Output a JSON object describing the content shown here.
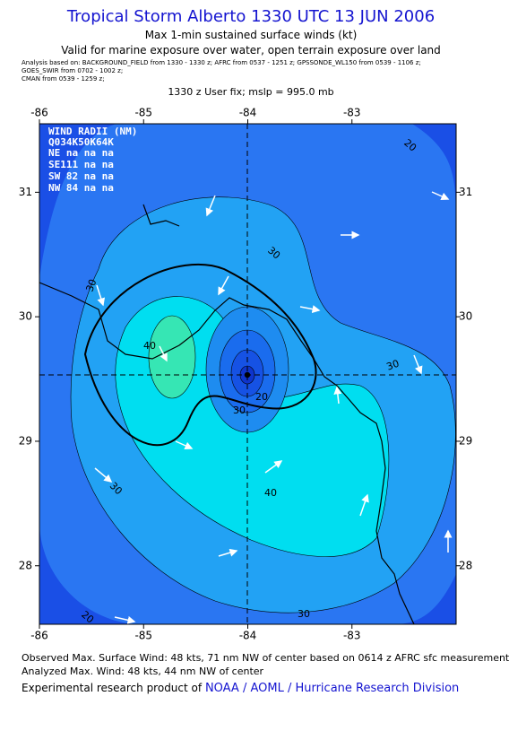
{
  "header": {
    "title": "Tropical Storm Alberto 1330 UTC 13 JUN 2006",
    "subtitle": "Max 1-min sustained surface winds (kt)",
    "validity": "Valid for marine exposure over water, open terrain exposure over land",
    "analysis": [
      "Analysis based on:  BACKGROUND_FIELD from 1330 - 1330 z;  AFRC from 0537 - 1251 z;  GPSSONDE_WL150 from 0539 - 1106 z;",
      "GOES_SWIR from 0702 - 1002 z;",
      "CMAN from 0539 - 1259 z;"
    ],
    "fix": "1330 z User fix; mslp = 995.0 mb"
  },
  "map": {
    "lonlim": [
      -86,
      -82
    ],
    "latlim": [
      27.53,
      31.55
    ],
    "lon_ticks": [
      -86,
      -85,
      -84,
      -83
    ],
    "lat_ticks": [
      31,
      30,
      29,
      28
    ],
    "wind_radii": {
      "title": "WIND RADII (NM)",
      "rows": [
        "Q034K50K64K",
        "NE na na na",
        "SE111 na na",
        "SW 82 na na",
        "NW 84 na na"
      ]
    },
    "contour_labels": [
      "30",
      "40",
      "20",
      "30",
      "30",
      "30",
      "40",
      "30",
      "30",
      "20",
      "20"
    ]
  },
  "footer": {
    "observed": "Observed Max. Surface Wind: 48 kts, 71 nm NW of center based on 0614 z AFRC sfc measurement",
    "analyzed": "Analyzed Max. Wind: 48 kts, 44 nm NW of center",
    "credit": "Experimental research product of",
    "credit_link": "NOAA / AOML / Hurricane Research Division"
  }
}
